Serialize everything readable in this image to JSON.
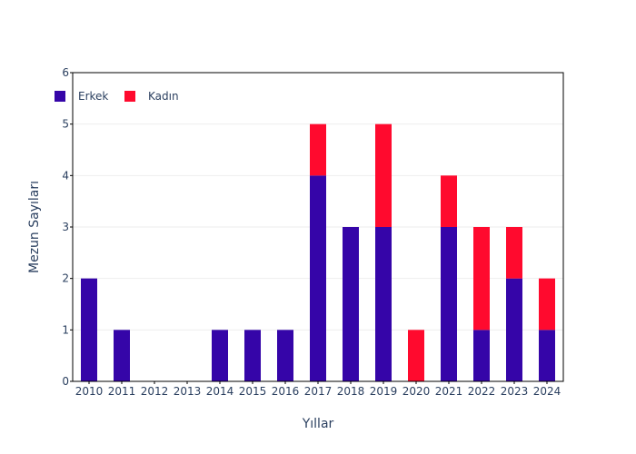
{
  "chart_data": {
    "type": "bar",
    "barmode": "stack",
    "title": "",
    "xlabel": "Yıllar",
    "ylabel": "Mezun Sayıları",
    "ylim": [
      0,
      6
    ],
    "yticks": [
      0,
      1,
      2,
      3,
      4,
      5,
      6
    ],
    "grid": true,
    "legend_position": "top-left",
    "categories": [
      "2010",
      "2011",
      "2012",
      "2013",
      "2014",
      "2015",
      "2016",
      "2017",
      "2018",
      "2019",
      "2020",
      "2021",
      "2022",
      "2023",
      "2024"
    ],
    "series": [
      {
        "name": "Erkek",
        "color": "#3505a8",
        "values": [
          2,
          1,
          0,
          0,
          1,
          1,
          1,
          4,
          3,
          3,
          0,
          3,
          1,
          2,
          1
        ]
      },
      {
        "name": "Kadın",
        "color": "#ff0a2e",
        "values": [
          0,
          0,
          0,
          0,
          0,
          0,
          0,
          1,
          0,
          2,
          1,
          1,
          2,
          1,
          1
        ]
      }
    ]
  }
}
